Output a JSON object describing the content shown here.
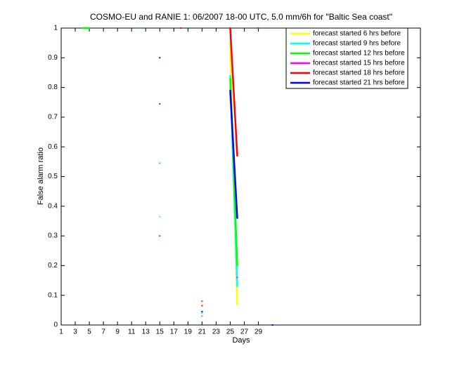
{
  "chart_data": {
    "type": "line",
    "title": "COSMO-EU and RANIE 1: 06/2007 18-00 UTC, 5.0 mm/6h for \"Baltic Sea coast\"",
    "x_label": "Days",
    "y_label": "False alarm ratio",
    "xlim": [
      1,
      52
    ],
    "ylim": [
      0,
      1
    ],
    "xticks": [
      1,
      3,
      5,
      7,
      9,
      11,
      13,
      15,
      17,
      19,
      21,
      23,
      25,
      27,
      29
    ],
    "yticks": [
      0,
      0.1,
      0.2,
      0.3,
      0.4,
      0.5,
      0.6,
      0.7,
      0.8,
      0.9,
      1
    ],
    "legend_position": "upper right",
    "series": [
      {
        "name": "forecast started 6 hrs before",
        "color": "#ffff00",
        "x": [
          25,
          26
        ],
        "values": [
          0.95,
          0.07
        ]
      },
      {
        "name": "forecast started 9 hrs before",
        "color": "#00ffff",
        "x": [
          15,
          16,
          21,
          22,
          25,
          26
        ],
        "values": [
          0.365,
          null,
          0.04,
          null,
          0.84,
          0.13
        ]
      },
      {
        "name": "forecast started 12 hrs before",
        "color": "#00ff00",
        "x": [
          4,
          5,
          6,
          12,
          13,
          15,
          16,
          21,
          22,
          25,
          26
        ],
        "values": [
          1,
          1,
          null,
          1,
          null,
          0.545,
          null,
          0.03,
          null,
          0.83,
          0.2
        ]
      },
      {
        "name": "forecast started 15 hrs before",
        "color": "#ff00ff",
        "x": [
          15,
          16,
          21,
          22,
          26
        ],
        "values": [
          0.3,
          null,
          0.08,
          null,
          0.16
        ]
      },
      {
        "name": "forecast started 18 hrs before",
        "color": "#ff0000",
        "x": [
          15,
          16,
          18,
          19,
          21,
          22,
          25,
          26,
          27,
          29
        ],
        "values": [
          0.745,
          null,
          1,
          null,
          0.065,
          null,
          1,
          0.57,
          null,
          1
        ]
      },
      {
        "name": "forecast started 21 hrs before",
        "color": "#0000ff",
        "x": [
          15,
          16,
          21,
          22,
          25,
          26,
          27,
          31
        ],
        "values": [
          0.9,
          null,
          0.045,
          null,
          0.79,
          0.36,
          null,
          0
        ]
      }
    ]
  }
}
